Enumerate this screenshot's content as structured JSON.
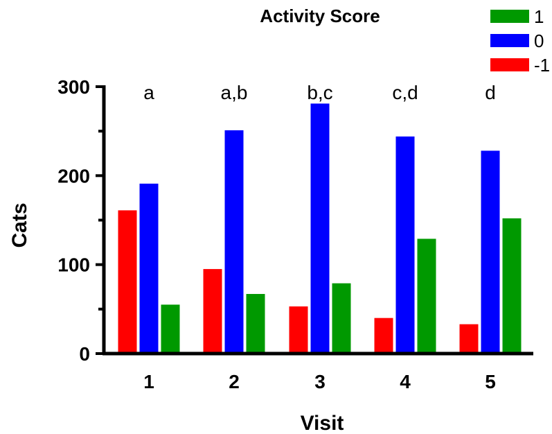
{
  "chart_data": {
    "type": "bar",
    "title": "",
    "xlabel": "Visit",
    "ylabel": "Cats",
    "ylim": [
      0,
      300
    ],
    "yticks": [
      0,
      100,
      200,
      300
    ],
    "categories": [
      "1",
      "2",
      "3",
      "4",
      "5"
    ],
    "annotations": [
      "a",
      "a,b",
      "b,c",
      "c,d",
      "d"
    ],
    "legend": {
      "title": "Activity Score",
      "placement": "top-right",
      "entries": [
        {
          "label": "1",
          "color": "#009900"
        },
        {
          "label": "0",
          "color": "#0000FF"
        },
        {
          "label": "-1",
          "color": "#FF0000"
        }
      ]
    },
    "series": [
      {
        "name": "-1",
        "color": "#FF0000",
        "values": [
          161,
          95,
          53,
          40,
          33
        ]
      },
      {
        "name": "0",
        "color": "#0000FF",
        "values": [
          191,
          251,
          281,
          244,
          228
        ]
      },
      {
        "name": "1",
        "color": "#009900",
        "values": [
          55,
          67,
          79,
          129,
          152
        ]
      }
    ],
    "grid": false
  }
}
